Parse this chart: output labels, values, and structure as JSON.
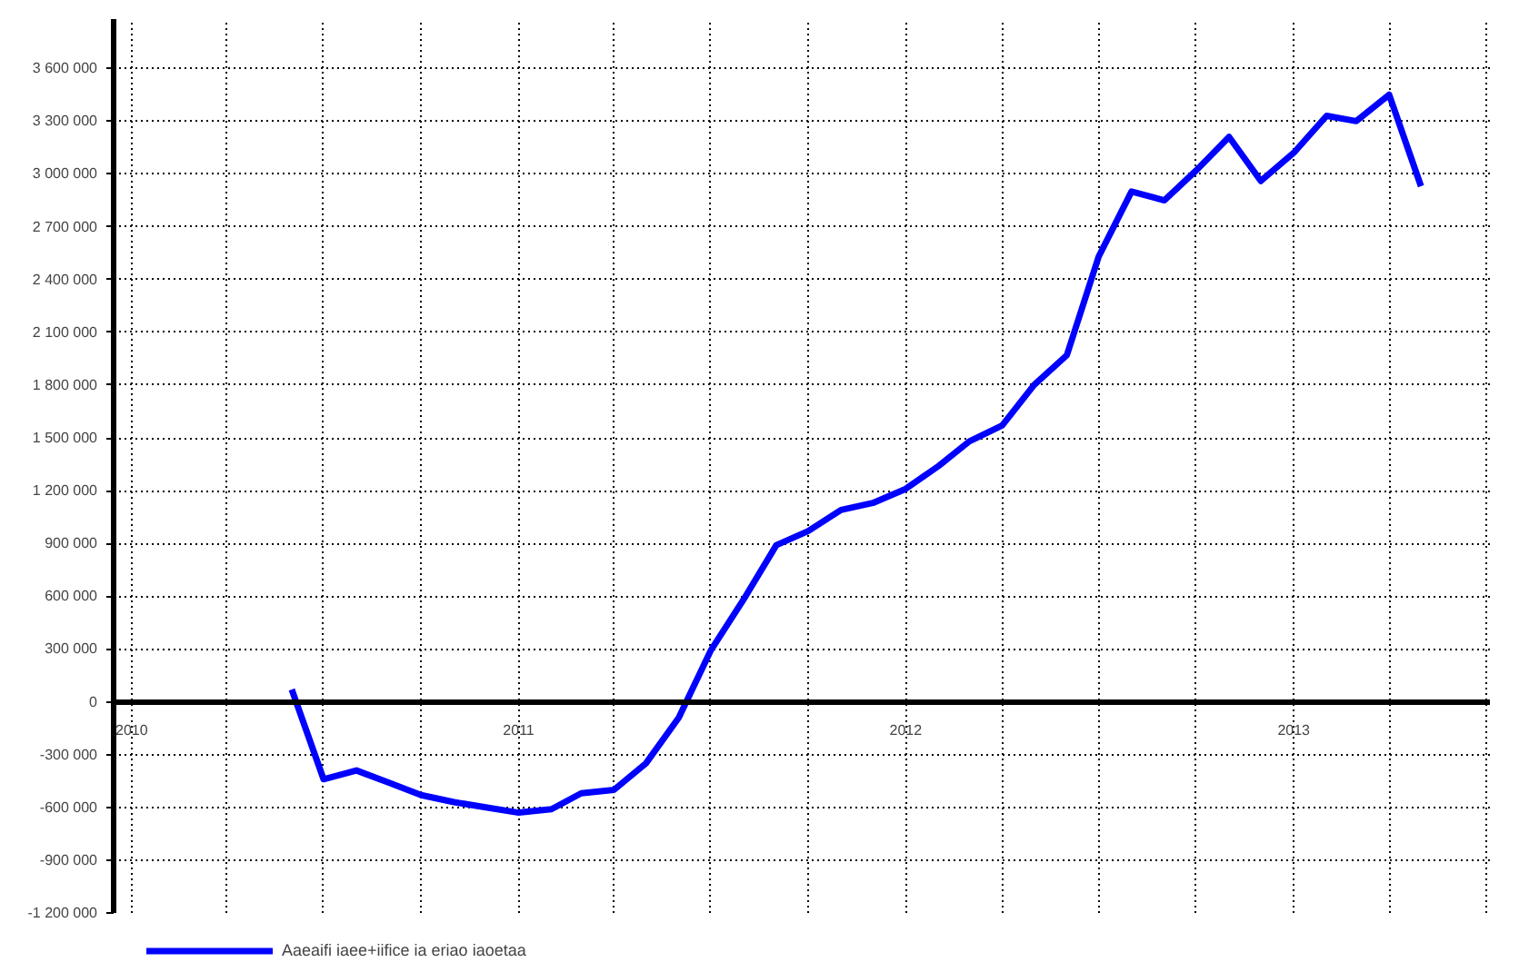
{
  "chart_data": {
    "type": "line",
    "x": [
      "2010-06",
      "2010-07",
      "2010-08",
      "2010-09",
      "2010-10",
      "2010-11",
      "2010-12",
      "2011-01",
      "2011-02",
      "2011-03",
      "2011-04",
      "2011-05",
      "2011-06",
      "2011-07",
      "2011-08",
      "2011-09",
      "2011-10",
      "2011-11",
      "2011-12",
      "2012-01",
      "2012-02",
      "2012-03",
      "2012-04",
      "2012-05",
      "2012-06",
      "2012-07",
      "2012-08",
      "2012-09",
      "2012-10",
      "2012-11",
      "2012-12",
      "2013-01",
      "2013-02",
      "2013-03",
      "2013-04",
      "2013-05"
    ],
    "series": [
      {
        "name": "Aaeaifi iaee+iifice ia eriao iaoetaa",
        "color": "#0000ff",
        "values": [
          70000,
          -440000,
          -390000,
          -460000,
          -530000,
          -570000,
          -600000,
          -630000,
          -610000,
          -520000,
          -500000,
          -350000,
          -90000,
          290000,
          580000,
          890000,
          970000,
          1090000,
          1130000,
          1210000,
          1340000,
          1480000,
          1570000,
          1800000,
          1970000,
          2530000,
          2900000,
          2850000,
          3020000,
          3210000,
          2960000,
          3120000,
          3330000,
          3300000,
          3450000,
          2930000
        ]
      }
    ],
    "xlim": [
      "2009-12-15",
      "2013-07-05"
    ],
    "xticks": [
      "2010",
      {
        "value": "2010-04",
        "label": null
      },
      {
        "value": "2010-07",
        "label": null
      },
      {
        "value": "2010-10",
        "label": null
      },
      "2011",
      {
        "value": "2011-04",
        "label": null
      },
      {
        "value": "2011-07",
        "label": null
      },
      {
        "value": "2011-10",
        "label": null
      },
      "2012",
      {
        "value": "2012-04",
        "label": null
      },
      {
        "value": "2012-07",
        "label": null
      },
      {
        "value": "2012-10",
        "label": null
      },
      "2013",
      {
        "value": "2013-04",
        "label": null
      },
      {
        "value": "2013-07",
        "label": null
      }
    ],
    "ylim": [
      -1200000,
      3880000
    ],
    "yticks": [
      {
        "value": -1200000,
        "label": "-1 200 000"
      },
      {
        "value": -900000,
        "label": "-900 000"
      },
      {
        "value": -600000,
        "label": "-600 000"
      },
      {
        "value": -300000,
        "label": "-300 000"
      },
      0,
      {
        "value": 300000,
        "label": "300 000"
      },
      {
        "value": 600000,
        "label": "600 000"
      },
      {
        "value": 900000,
        "label": "900 000"
      },
      {
        "value": 1200000,
        "label": "1 200 000"
      },
      {
        "value": 1500000,
        "label": "1 500 000"
      },
      {
        "value": 1800000,
        "label": "1 800 000"
      },
      {
        "value": 2100000,
        "label": "2 100 000"
      },
      {
        "value": 2400000,
        "label": "2 400 000"
      },
      {
        "value": 2700000,
        "label": "2 700 000"
      },
      {
        "value": 3000000,
        "label": "3 000 000"
      },
      {
        "value": 3300000,
        "label": "3 300 000"
      },
      {
        "value": 3600000,
        "label": "3 600 000"
      }
    ],
    "grid": true,
    "legend": "bottom",
    "line_style": "solid",
    "marker": "none"
  }
}
